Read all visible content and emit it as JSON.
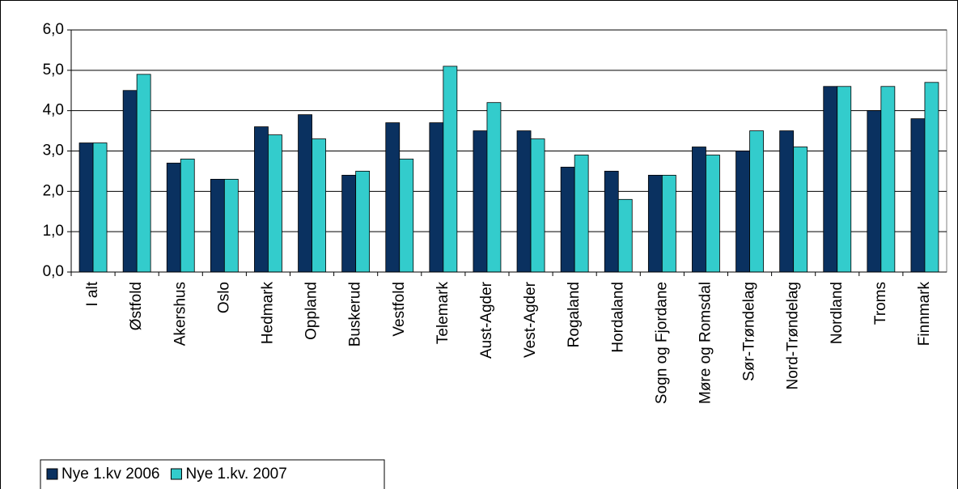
{
  "chart_data": {
    "type": "bar",
    "categories": [
      "I alt",
      "Østfold",
      "Akershus",
      "Oslo",
      "Hedmark",
      "Oppland",
      "Buskerud",
      "Vestfold",
      "Telemark",
      "Aust-Agder",
      "Vest-Agder",
      "Rogaland",
      "Hordaland",
      "Sogn og Fjordane",
      "Møre og Romsdal",
      "Sør-Trøndelag",
      "Nord-Trøndelag",
      "Nordland",
      "Troms",
      "Finnmark"
    ],
    "series": [
      {
        "name": "Nye 1.kv 2006",
        "color": "#0a3160",
        "values": [
          3.2,
          4.5,
          2.7,
          2.3,
          3.6,
          3.9,
          2.4,
          3.7,
          3.7,
          3.5,
          3.5,
          2.6,
          2.5,
          2.4,
          3.1,
          3.0,
          3.5,
          4.6,
          4.0,
          3.8
        ]
      },
      {
        "name": "Nye 1.kv. 2007",
        "color": "#33cccc",
        "values": [
          3.2,
          4.9,
          2.8,
          2.3,
          3.4,
          3.3,
          2.5,
          2.8,
          5.1,
          4.2,
          3.3,
          2.9,
          1.8,
          2.4,
          2.9,
          3.5,
          3.1,
          4.6,
          4.6,
          4.7
        ]
      }
    ],
    "ylim": [
      0,
      6
    ],
    "yticks": [
      {
        "value": 0,
        "label": "0,0"
      },
      {
        "value": 1,
        "label": "1,0"
      },
      {
        "value": 2,
        "label": "2,0"
      },
      {
        "value": 3,
        "label": "3,0"
      },
      {
        "value": 4,
        "label": "4,0"
      },
      {
        "value": 5,
        "label": "5,0"
      },
      {
        "value": 6,
        "label": "6,0"
      }
    ],
    "grid": true,
    "legend": "bottom-left"
  }
}
